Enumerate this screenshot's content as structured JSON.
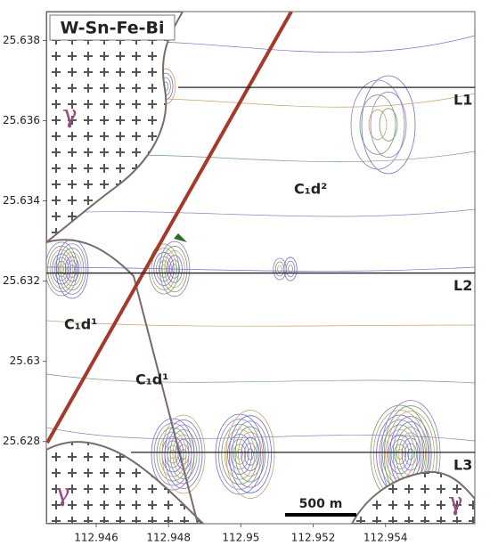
{
  "map": {
    "title": "W-Sn-Fe-Bi",
    "xlim": [
      112.94462,
      112.95647
    ],
    "ylim": [
      25.62595,
      25.63872
    ],
    "xticks": [
      112.946,
      112.948,
      112.95,
      112.952,
      112.954
    ],
    "yticks": [
      25.628,
      25.63,
      25.632,
      25.634,
      25.636,
      25.638
    ],
    "profiles": [
      {
        "label": "L1",
        "y": 25.63683
      },
      {
        "label": "L2",
        "y": 25.6322
      },
      {
        "label": "L3",
        "y": 25.62773
      }
    ],
    "units": [
      {
        "label": "C₁d²"
      },
      {
        "label": "C₁d¹"
      },
      {
        "label": "C₁d¹"
      },
      {
        "label": "γ"
      },
      {
        "label": "γ"
      },
      {
        "label": "γ"
      }
    ],
    "scale_bar": "500 m"
  }
}
